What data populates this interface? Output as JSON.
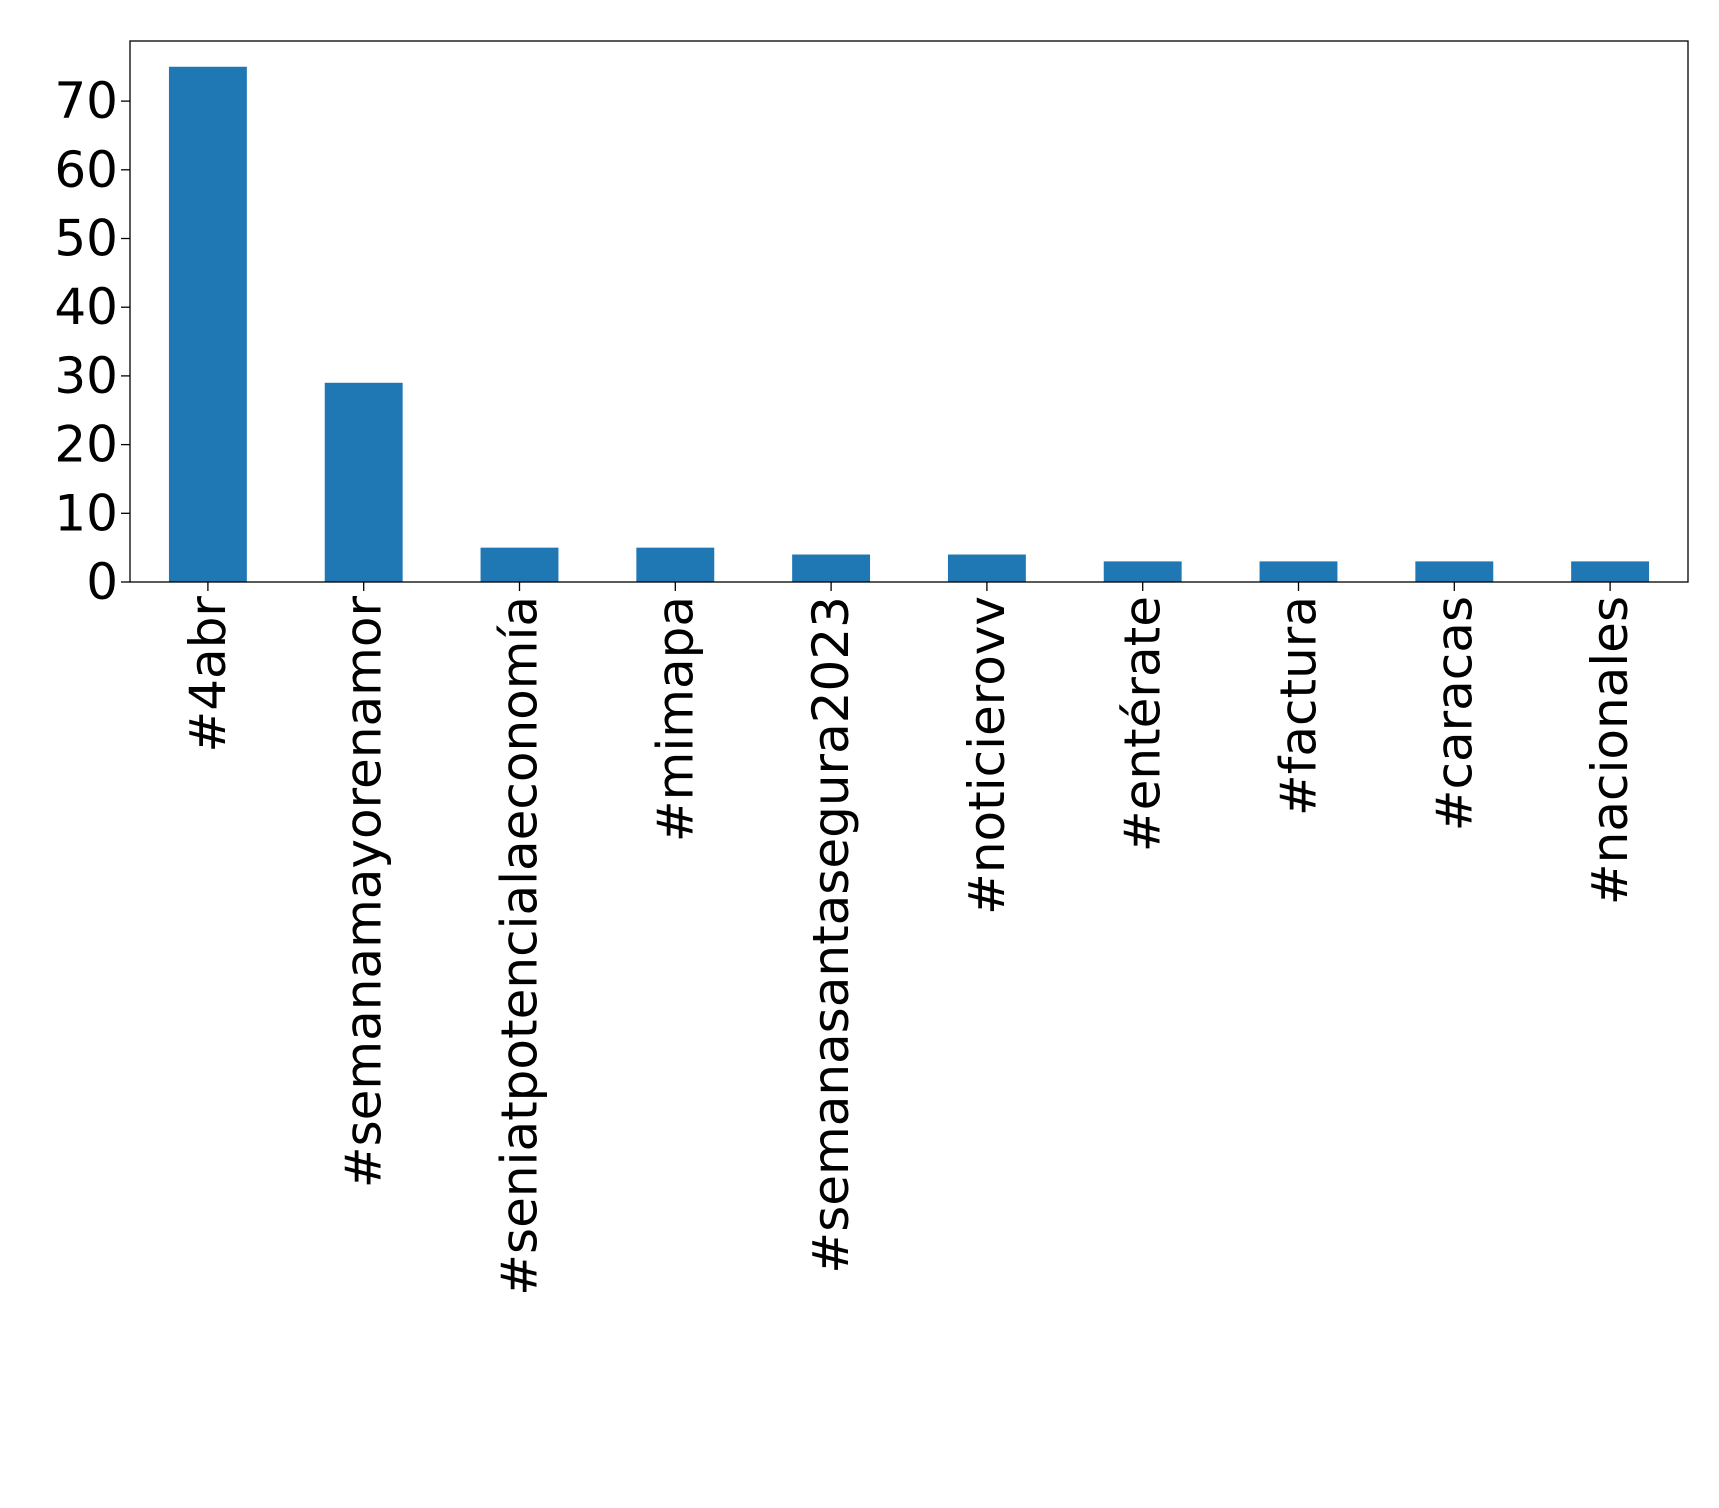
{
  "chart_data": {
    "type": "bar",
    "title": "",
    "xlabel": "",
    "ylabel": "",
    "categories": [
      "#4abr",
      "#semanamayorenamor",
      "#seniatpotencialaeconomía",
      "#mimapa",
      "#semanasantasegura2023",
      "#noticierovv",
      "#entérate",
      "#factura",
      "#caracas",
      "#nacionales"
    ],
    "values": [
      75,
      29,
      5,
      5,
      4,
      4,
      3,
      3,
      3,
      3
    ],
    "ylim": [
      0,
      78.75
    ],
    "yticks": [
      0,
      10,
      20,
      30,
      40,
      50,
      60,
      70
    ],
    "bar_color": "#1f77b4",
    "grid": false,
    "legend": "none"
  }
}
